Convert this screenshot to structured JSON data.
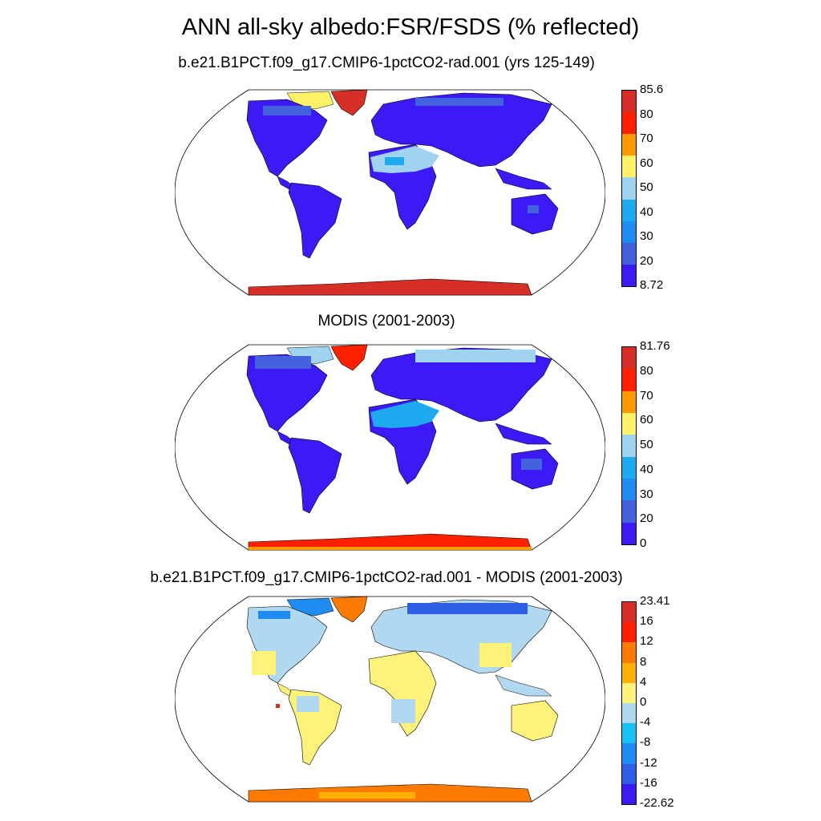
{
  "title": "ANN all-sky albedo:FSR/FSDS (% reflected)",
  "panels": [
    {
      "title": "b.e21.B1PCT.f09_g17.CMIP6-1pctCO2-rad.001 (yrs 125-149)",
      "colorbar": {
        "labels": [
          "85.6",
          "80",
          "70",
          "60",
          "50",
          "40",
          "30",
          "20",
          "8.72"
        ],
        "colors": [
          "#d62f27",
          "#ff2000",
          "#ff9900",
          "#fff266",
          "#a0d3f0",
          "#1eaaf1",
          "#1e8cf0",
          "#4363de",
          "#3b1af5"
        ]
      }
    },
    {
      "title": "MODIS (2001-2003)",
      "colorbar": {
        "labels": [
          "81.76",
          "80",
          "70",
          "60",
          "50",
          "40",
          "30",
          "20",
          "0"
        ],
        "colors": [
          "#d62f27",
          "#ff2000",
          "#ff9900",
          "#fff266",
          "#a0d3f0",
          "#1eaaf1",
          "#1e8cf0",
          "#4363de",
          "#3b1af5"
        ]
      }
    },
    {
      "title": "b.e21.B1PCT.f09_g17.CMIP6-1pctCO2-rad.001 - MODIS (2001-2003)",
      "colorbar": {
        "labels": [
          "23.41",
          "16",
          "12",
          "8",
          "4",
          "0",
          "-4",
          "-8",
          "-12",
          "-16",
          "-22.62"
        ],
        "colors": [
          "#d62f27",
          "#ff2000",
          "#ff7a00",
          "#ffb000",
          "#fff27a",
          "#b0d8f0",
          "#19c2f5",
          "#1e8cf0",
          "#2e5fe6",
          "#3b1af5"
        ]
      }
    }
  ],
  "map_projection": "Robinson",
  "fill_colors": {
    "ocean": "#ffffff",
    "coast": "#000000"
  }
}
